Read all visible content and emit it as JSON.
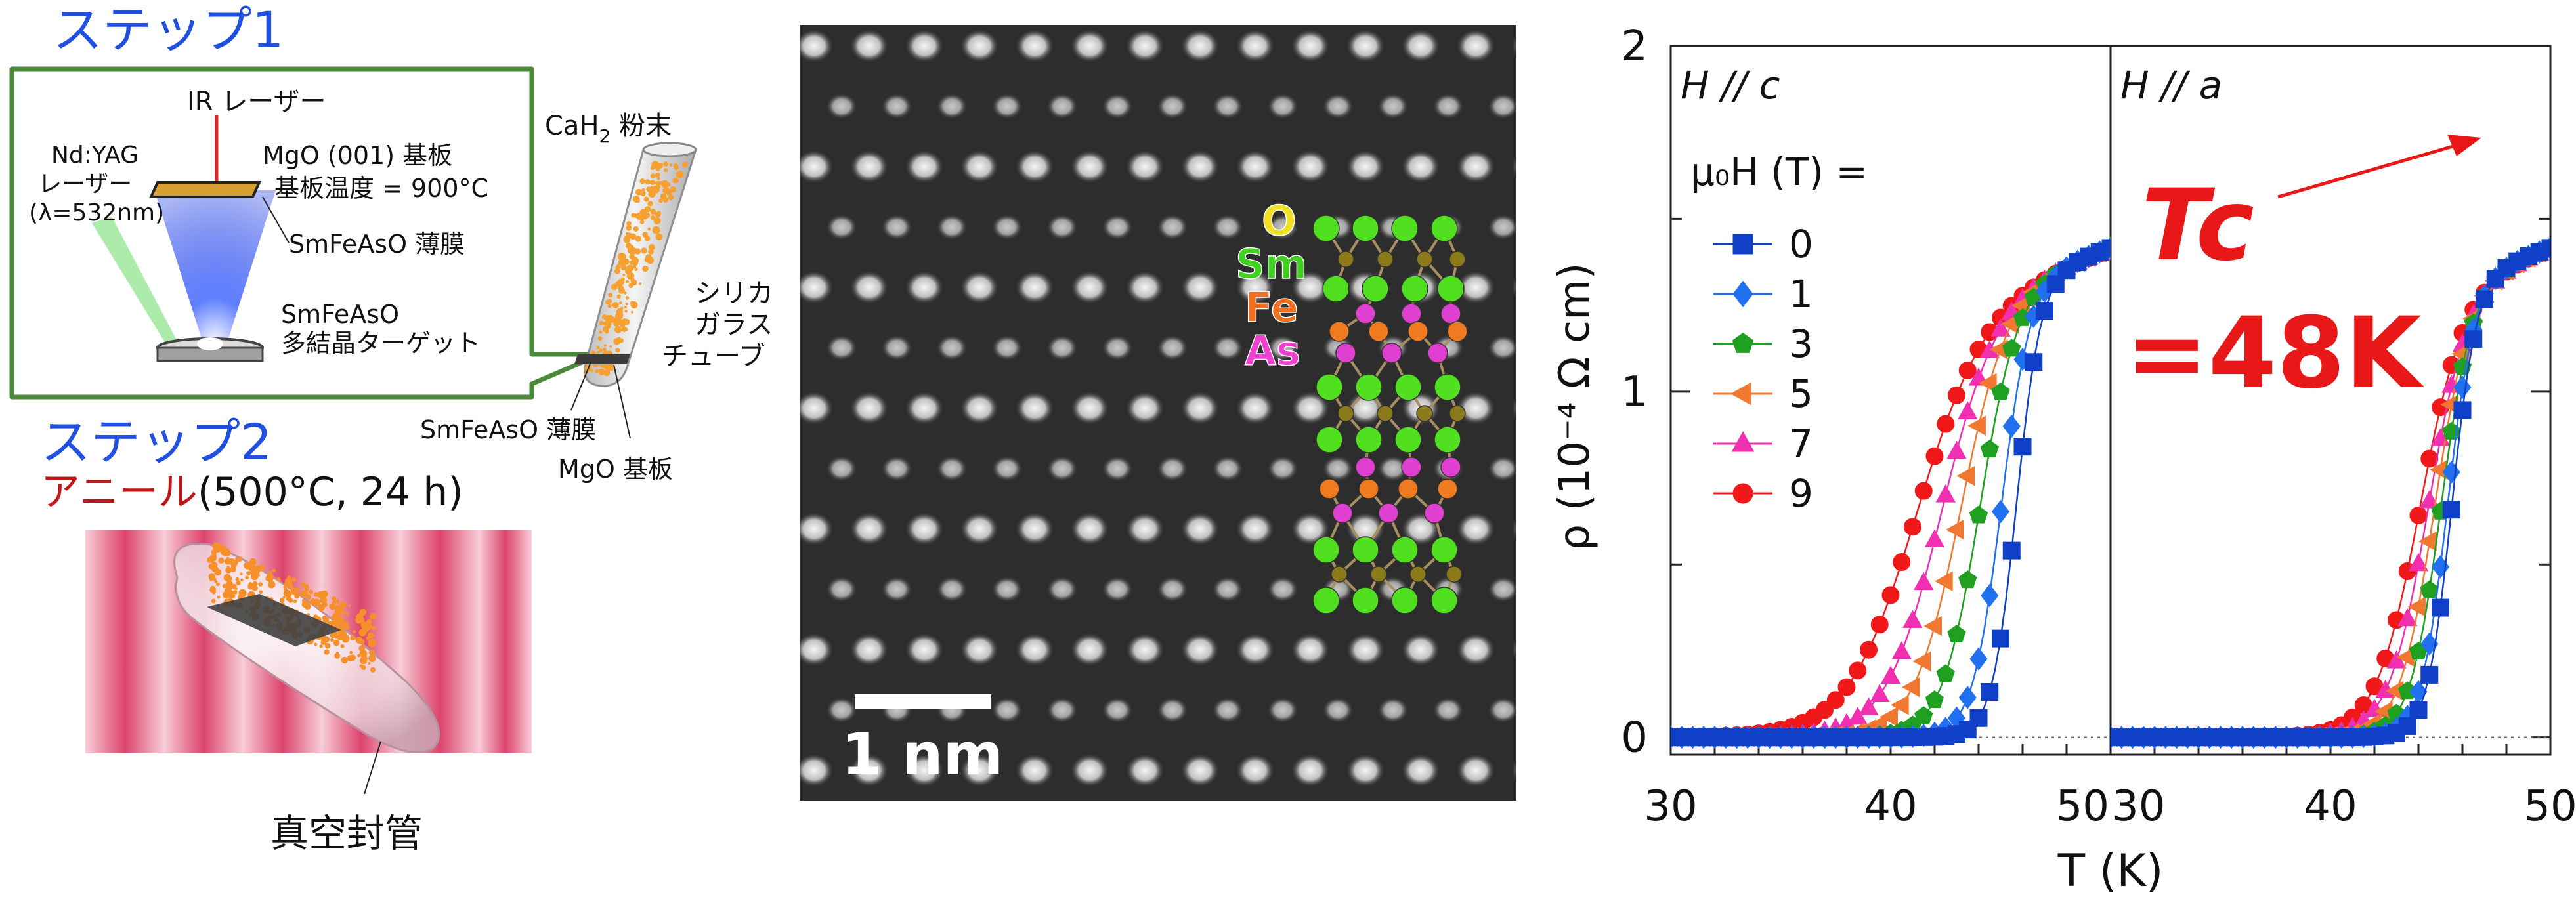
{
  "steps": {
    "step1": {
      "title": "ステップ1",
      "ir_laser": "IR レーザー",
      "nd_yag": [
        "Nd:YAG",
        "レーザー",
        "(λ=532nm)"
      ],
      "mgo_substrate": "MgO (001) 基板",
      "substrate_temp": "基板温度 = 900°C",
      "film": "SmFeAsO 薄膜",
      "target": [
        "SmFeAsO",
        "多結晶ターゲット"
      ],
      "cah2": "CaH",
      "cah2_sub": "2",
      "cah2_powder": " 粉末",
      "silica": [
        "シリカ",
        "ガラス",
        "チューブ"
      ],
      "film2": "SmFeAsO 薄膜",
      "mgo2": "MgO 基板"
    },
    "step2": {
      "title": "ステップ2",
      "anneal": "アニール",
      "condition": "(500°C, 24 h)",
      "sealed": "真空封管"
    }
  },
  "stem": {
    "scale_bar": "1 nm",
    "atoms": [
      {
        "label": "O",
        "color": "#f0e020"
      },
      {
        "label": "Sm",
        "color": "#40d020"
      },
      {
        "label": "Fe",
        "color": "#f07020"
      },
      {
        "label": "As",
        "color": "#f040d0"
      }
    ]
  },
  "chart_data": {
    "type": "scatter",
    "ylabel": "ρ (10⁻⁴ Ω cm)",
    "xlabel": "T (K)",
    "ylim": [
      -0.05,
      2.0
    ],
    "yticks": [
      "0",
      "1",
      "2"
    ],
    "xlim": [
      30,
      50
    ],
    "xticks": [
      "30",
      "40",
      "50"
    ],
    "legend_title": "μ₀H (T) =",
    "panels": [
      {
        "name": "H // c",
        "tc": [
          45.7,
          45.0,
          44.0,
          43.1,
          42.2,
          41.0
        ],
        "width": [
          0.55,
          0.65,
          0.85,
          1.05,
          1.25,
          1.55
        ]
      },
      {
        "name": "H // a",
        "tc": [
          45.5,
          45.3,
          45.0,
          44.7,
          44.4,
          44.0
        ],
        "width": [
          0.55,
          0.6,
          0.7,
          0.8,
          0.9,
          1.0
        ]
      }
    ],
    "series": [
      {
        "name": "0",
        "color": "#1040c8",
        "marker": "square"
      },
      {
        "name": "1",
        "color": "#2070f0",
        "marker": "diamond"
      },
      {
        "name": "3",
        "color": "#20a020",
        "marker": "pentagon"
      },
      {
        "name": "5",
        "color": "#f07830",
        "marker": "triangle-left"
      },
      {
        "name": "7",
        "color": "#f030b0",
        "marker": "triangle-up"
      },
      {
        "name": "9",
        "color": "#f01818",
        "marker": "circle"
      }
    ],
    "annotation": {
      "tc_label": "Tc",
      "tc_value": "=48K",
      "color": "#e81818"
    }
  }
}
